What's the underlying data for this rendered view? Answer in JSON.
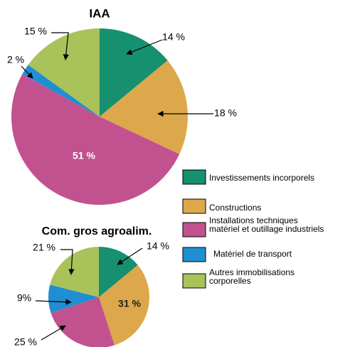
{
  "chart_data": [
    {
      "type": "pie",
      "title": "IAA",
      "categories": [
        "Investissements incorporels",
        "Constructions",
        "Installations techniques\nmatériel et outillage industriels",
        "Matériel de transport",
        "Autres immobilisations\ncorporelles"
      ],
      "colors": [
        "#16906f",
        "#dca84b",
        "#c2528f",
        "#1f8fd2",
        "#a9c25a"
      ],
      "values": [
        14,
        18,
        51,
        2,
        15
      ],
      "value_labels": [
        "14 %",
        "18 %",
        "51 %",
        "2 %",
        "15 %"
      ]
    },
    {
      "type": "pie",
      "title": "Com. gros agroalim.",
      "values": [
        14,
        31,
        25,
        9,
        21
      ],
      "value_labels": [
        "14 %",
        "31 %",
        "25 %",
        "9%",
        "21 %"
      ]
    }
  ]
}
